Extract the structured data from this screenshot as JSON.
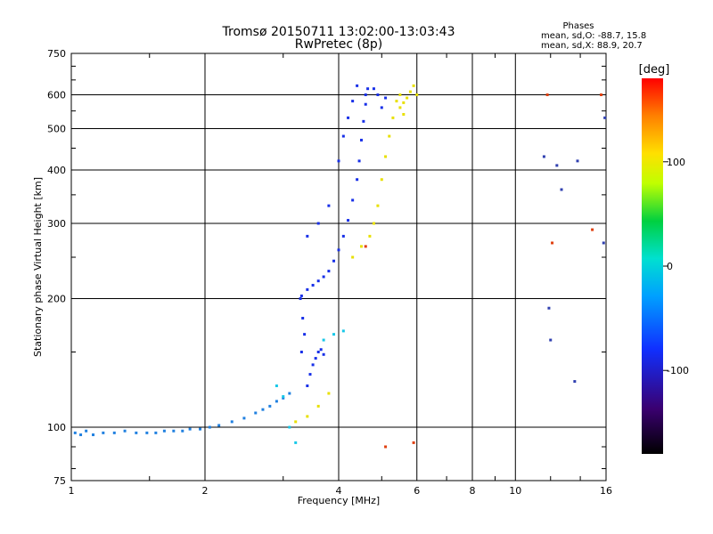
{
  "chart_data": {
    "type": "scatter",
    "title": "Tromsø 20150711 13:02:00-13:03:43",
    "subtitle": "RwPretec (8p)",
    "xlabel": "Frequency [MHz]",
    "ylabel": "Stationary phase Virtual Height [km]",
    "x_scale": "log",
    "y_scale": "log",
    "xlim": [
      1,
      16
    ],
    "ylim": [
      75,
      750
    ],
    "x_ticks": [
      1,
      2,
      4,
      6,
      8,
      10,
      16
    ],
    "y_ticks": [
      75,
      100,
      200,
      300,
      400,
      500,
      600,
      750
    ],
    "grid": true,
    "annotation": {
      "heading": "Phases",
      "line1": "mean, sd,O: -88.7, 15.8",
      "line2": "mean, sd,X:  88.9, 20.7"
    },
    "colorbar": {
      "label": "[deg]",
      "range": [
        -180,
        180
      ],
      "ticks": [
        100,
        0,
        -100
      ],
      "colors": [
        "#000000",
        "#3a0070",
        "#1030ff",
        "#00a0ff",
        "#00e0d0",
        "#00d040",
        "#c0ff00",
        "#ffe000",
        "#ff8000",
        "#ff0000"
      ]
    },
    "series": [
      {
        "color": "#2080e0",
        "points": [
          [
            1.02,
            97
          ],
          [
            1.05,
            96
          ],
          [
            1.08,
            98
          ],
          [
            1.12,
            96
          ],
          [
            1.18,
            97
          ],
          [
            1.25,
            97
          ],
          [
            1.32,
            98
          ],
          [
            1.4,
            97
          ],
          [
            1.48,
            97
          ],
          [
            1.55,
            97
          ],
          [
            1.62,
            98
          ],
          [
            1.7,
            98
          ],
          [
            1.78,
            98
          ],
          [
            1.85,
            99
          ],
          [
            1.95,
            99
          ],
          [
            2.05,
            100
          ],
          [
            2.15,
            101
          ],
          [
            2.3,
            103
          ],
          [
            2.45,
            105
          ],
          [
            2.6,
            108
          ],
          [
            2.7,
            110
          ],
          [
            2.8,
            112
          ],
          [
            2.9,
            115
          ],
          [
            3.0,
            117
          ],
          [
            3.1,
            120
          ]
        ]
      },
      {
        "color": "#1830e8",
        "points": [
          [
            3.4,
            125
          ],
          [
            3.45,
            133
          ],
          [
            3.5,
            140
          ],
          [
            3.55,
            145
          ],
          [
            3.6,
            150
          ],
          [
            3.65,
            152
          ],
          [
            3.7,
            148
          ],
          [
            3.3,
            150
          ],
          [
            3.35,
            165
          ],
          [
            3.32,
            180
          ],
          [
            3.28,
            200
          ],
          [
            3.3,
            203
          ],
          [
            3.4,
            210
          ],
          [
            3.5,
            215
          ],
          [
            3.6,
            220
          ],
          [
            3.7,
            225
          ],
          [
            3.8,
            232
          ],
          [
            3.9,
            245
          ],
          [
            4.0,
            260
          ],
          [
            4.1,
            280
          ],
          [
            4.2,
            305
          ],
          [
            4.3,
            340
          ],
          [
            4.4,
            380
          ],
          [
            4.45,
            420
          ],
          [
            4.5,
            470
          ],
          [
            4.55,
            520
          ],
          [
            4.6,
            570
          ],
          [
            4.65,
            620
          ],
          [
            3.4,
            280
          ],
          [
            3.6,
            300
          ],
          [
            3.8,
            330
          ],
          [
            4.0,
            420
          ],
          [
            4.1,
            480
          ],
          [
            4.2,
            530
          ],
          [
            4.3,
            580
          ],
          [
            4.4,
            630
          ],
          [
            4.6,
            600
          ],
          [
            4.8,
            620
          ],
          [
            5.0,
            560
          ],
          [
            5.1,
            590
          ],
          [
            4.9,
            600
          ]
        ]
      },
      {
        "color": "#e8e000",
        "points": [
          [
            3.2,
            103
          ],
          [
            3.4,
            106
          ],
          [
            3.6,
            112
          ],
          [
            3.8,
            120
          ],
          [
            4.3,
            250
          ],
          [
            4.5,
            265
          ],
          [
            4.7,
            280
          ],
          [
            4.8,
            300
          ],
          [
            4.9,
            330
          ],
          [
            5.0,
            380
          ],
          [
            5.1,
            430
          ],
          [
            5.2,
            480
          ],
          [
            5.3,
            530
          ],
          [
            5.4,
            580
          ],
          [
            5.5,
            560
          ],
          [
            5.6,
            540
          ],
          [
            5.7,
            590
          ],
          [
            5.8,
            610
          ],
          [
            5.9,
            630
          ],
          [
            6.0,
            600
          ],
          [
            5.5,
            600
          ],
          [
            5.6,
            575
          ]
        ]
      },
      {
        "color": "#18c8e8",
        "points": [
          [
            2.9,
            125
          ],
          [
            3.0,
            118
          ],
          [
            3.1,
            100
          ],
          [
            3.2,
            92
          ],
          [
            3.7,
            160
          ],
          [
            3.9,
            165
          ],
          [
            4.1,
            168
          ]
        ]
      },
      {
        "color": "#e04010",
        "points": [
          [
            4.6,
            265
          ],
          [
            5.1,
            90
          ],
          [
            5.9,
            92
          ],
          [
            11.8,
            600
          ],
          [
            12.1,
            270
          ],
          [
            14.9,
            290
          ],
          [
            15.6,
            600
          ]
        ]
      },
      {
        "color": "#3040b0",
        "points": [
          [
            11.6,
            430
          ],
          [
            12.4,
            410
          ],
          [
            12.7,
            360
          ],
          [
            13.8,
            420
          ],
          [
            11.9,
            190
          ],
          [
            12.0,
            160
          ],
          [
            13.6,
            128
          ],
          [
            15.8,
            270
          ],
          [
            15.9,
            530
          ]
        ]
      }
    ]
  }
}
